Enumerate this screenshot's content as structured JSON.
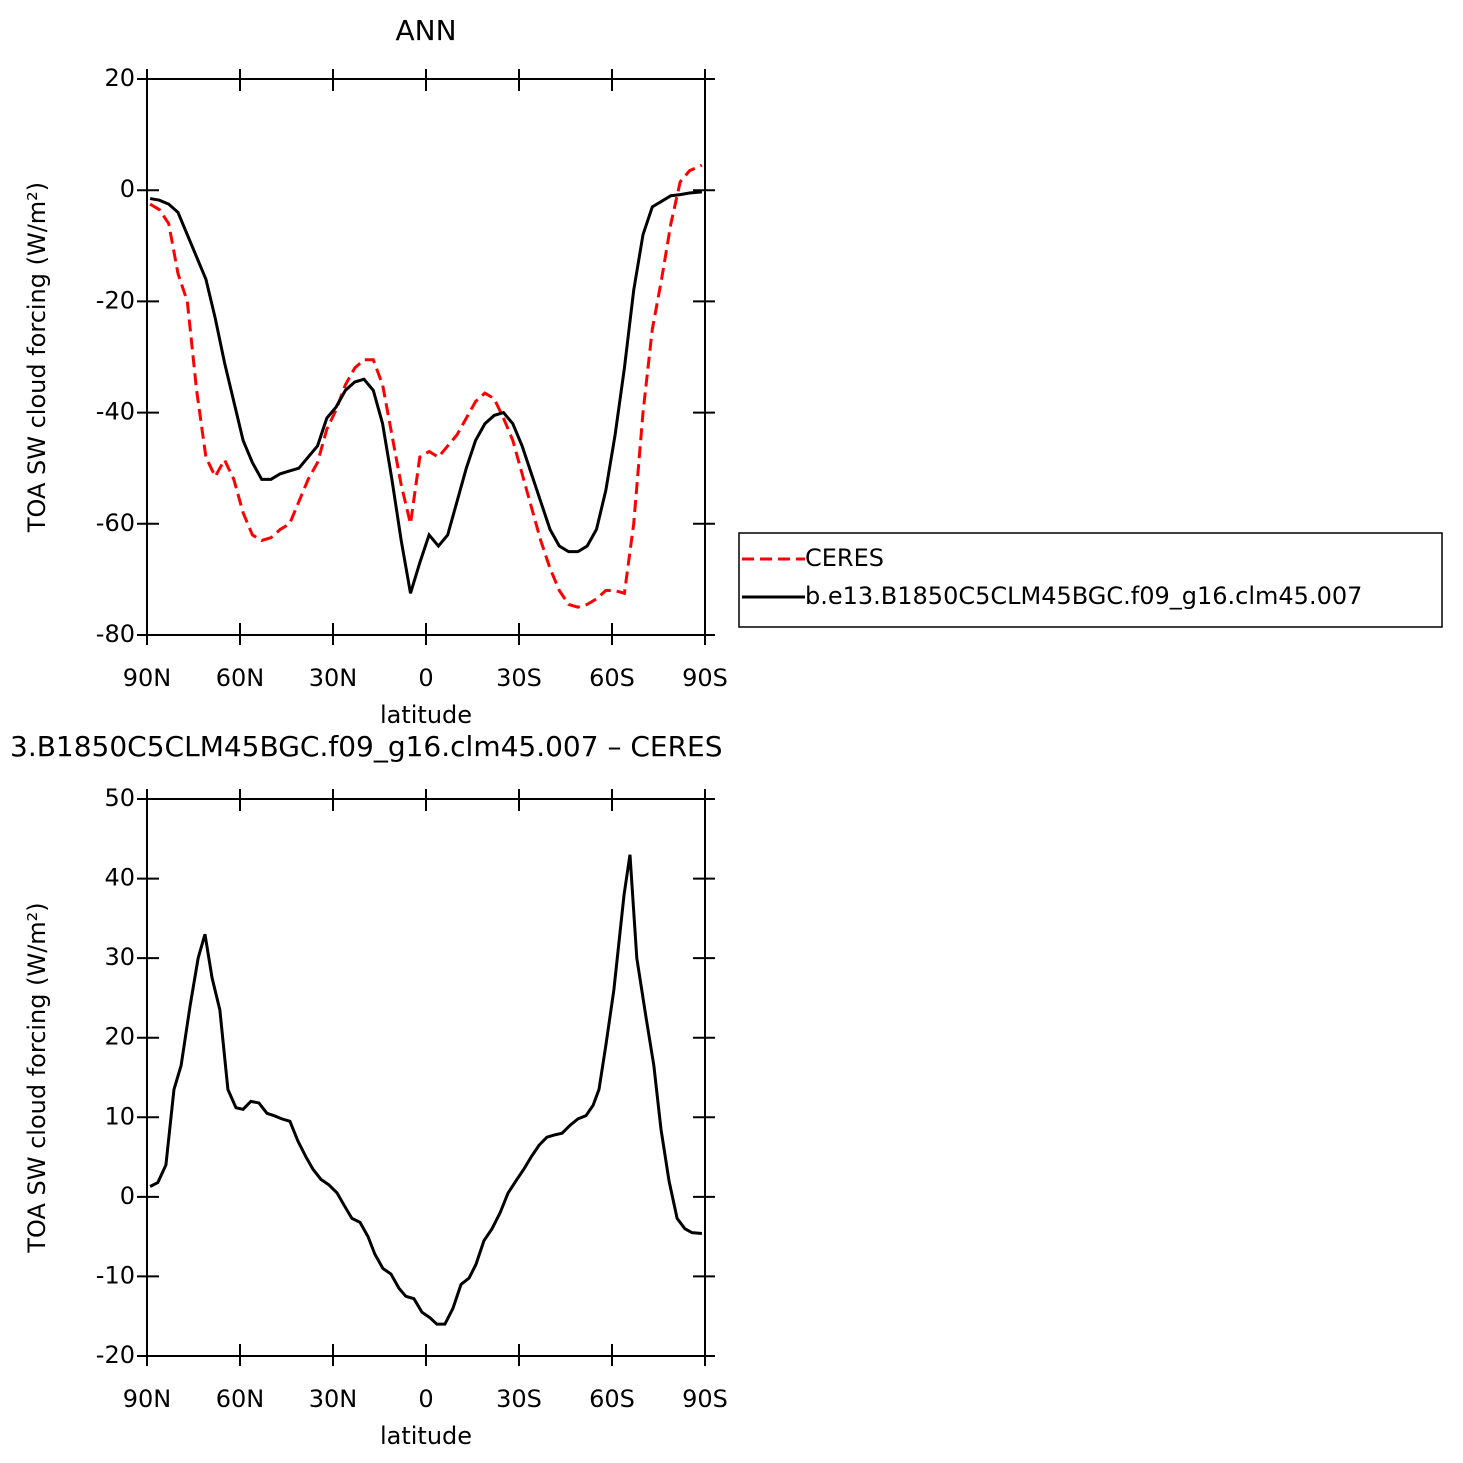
{
  "chart_data": [
    {
      "type": "line",
      "title": "ANN",
      "x_label": "latitude",
      "y_label": "TOA SW cloud forcing (W/m²)",
      "x": [
        89,
        86,
        83,
        80,
        77,
        74,
        71,
        68,
        65,
        62,
        59,
        56,
        53,
        50,
        47,
        44,
        41,
        38,
        35,
        32,
        29,
        26,
        23,
        20,
        17,
        14,
        11,
        8,
        5,
        2,
        -1,
        -4,
        -7,
        -10,
        -13,
        -16,
        -19,
        -22,
        -25,
        -28,
        -31,
        -34,
        -37,
        -40,
        -43,
        -46,
        -49,
        -52,
        -55,
        -58,
        -61,
        -64,
        -67,
        -70,
        -73,
        -76,
        -79,
        -82,
        -85,
        -89
      ],
      "series": [
        {
          "name": "CERES",
          "color": "#ff0000",
          "linestyle": "dashed",
          "values": [
            -2.5,
            -3.5,
            -6,
            -15,
            -20,
            -36,
            -48,
            -51.5,
            -48.5,
            -52,
            -58,
            -62,
            -63,
            -62.5,
            -61,
            -60,
            -56,
            -52,
            -49,
            -43,
            -39.5,
            -35,
            -32,
            -30.5,
            -30.5,
            -35,
            -44,
            -53,
            -60,
            -48,
            -47,
            -48,
            -46,
            -44,
            -41,
            -38,
            -36.5,
            -37.5,
            -41,
            -45,
            -51,
            -57,
            -63,
            -68,
            -72,
            -74.5,
            -75,
            -74.5,
            -73.5,
            -72,
            -72,
            -72.5,
            -60,
            -40,
            -25,
            -16,
            -6,
            1.5,
            3.5,
            4.5
          ]
        },
        {
          "name": "b.e13.B1850C5CLM45BGC.f09_g16.clm45.007",
          "color": "#000000",
          "linestyle": "solid",
          "values": [
            -1.5,
            -1.8,
            -2.5,
            -4,
            -8,
            -12,
            -16,
            -23,
            -31,
            -38,
            -45,
            -49,
            -52,
            -52,
            -51,
            -50.5,
            -50,
            -48,
            -46,
            -41,
            -39,
            -36,
            -34.5,
            -34,
            -36,
            -42,
            -52,
            -63,
            -72.5,
            -67,
            -62,
            -64,
            -62,
            -56,
            -50,
            -45,
            -42,
            -40.5,
            -40,
            -42,
            -46,
            -51,
            -56,
            -61,
            -64,
            -65,
            -65,
            -64,
            -61,
            -54,
            -44,
            -32,
            -18,
            -8,
            -3,
            -2,
            -1,
            -0.8,
            -0.5,
            -0.3
          ]
        }
      ],
      "xlim": [
        90,
        -90
      ],
      "xticks": [
        {
          "value": 90,
          "label": "90N"
        },
        {
          "value": 60,
          "label": "60N"
        },
        {
          "value": 30,
          "label": "30N"
        },
        0,
        {
          "value": -30,
          "label": "30S"
        },
        {
          "value": -60,
          "label": "60S"
        },
        {
          "value": -90,
          "label": "90S"
        }
      ],
      "ylim": [
        -80,
        20
      ],
      "yticks": [
        -80,
        -60,
        -40,
        -20,
        0,
        20
      ],
      "legend": "right"
    },
    {
      "type": "line",
      "title": "3.B1850C5CLM45BGC.f09_g16.clm45.007 – CERES",
      "x_label": "latitude",
      "y_label": "TOA SW cloud forcing (W/m²)",
      "x": [
        89,
        86.5,
        83.9,
        81.3,
        79,
        76.1,
        73.5,
        71.3,
        69,
        66.5,
        63.9,
        61.3,
        59,
        56.5,
        53.9,
        51.3,
        49,
        46.5,
        43.9,
        41.3,
        38.7,
        36.5,
        33.9,
        31.3,
        28.7,
        26.5,
        23.9,
        21.3,
        18.7,
        16.5,
        13.9,
        11.3,
        8.7,
        6.5,
        3.9,
        1.3,
        -1.3,
        -3.5,
        -6.1,
        -8.7,
        -11.3,
        -13.9,
        -16.1,
        -18.7,
        -21.3,
        -23.9,
        -26.5,
        -29,
        -31.6,
        -33.9,
        -36.5,
        -39,
        -41.6,
        -43.9,
        -46.5,
        -49,
        -51.6,
        -53.9,
        -55.8,
        -58,
        -60.6,
        -63.9,
        -65.8,
        -68,
        -71,
        -73.5,
        -75.8,
        -78.4,
        -81,
        -83.5,
        -85.8,
        -89
      ],
      "series": [
        {
          "color": "#000000",
          "linestyle": "solid",
          "values": [
            1.3,
            1.8,
            4,
            13.5,
            16.5,
            24,
            30,
            33,
            27.5,
            23.5,
            13.5,
            11.2,
            11,
            12,
            11.8,
            10.5,
            10.2,
            9.8,
            9.5,
            7,
            5,
            3.5,
            2.2,
            1.5,
            0.5,
            -1,
            -2.7,
            -3.2,
            -5,
            -7.2,
            -9,
            -9.7,
            -11.5,
            -12.5,
            -12.8,
            -14.5,
            -15.2,
            -16,
            -16,
            -14,
            -11,
            -10.2,
            -8.5,
            -5.5,
            -4,
            -2,
            0.5,
            2,
            3.5,
            5,
            6.5,
            7.5,
            7.8,
            8,
            9,
            9.8,
            10.2,
            11.5,
            13.5,
            19,
            26,
            38,
            43,
            30,
            22.5,
            16.5,
            8.5,
            2,
            -2.7,
            -4,
            -4.5,
            -4.6
          ]
        }
      ],
      "xlim": [
        90,
        -90
      ],
      "xticks": [
        {
          "value": 90,
          "label": "90N"
        },
        {
          "value": 60,
          "label": "60N"
        },
        {
          "value": 30,
          "label": "30N"
        },
        0,
        {
          "value": -30,
          "label": "30S"
        },
        {
          "value": -60,
          "label": "60S"
        },
        {
          "value": -90,
          "label": "90S"
        }
      ],
      "ylim": [
        -20,
        50
      ],
      "yticks": [
        -20,
        -10,
        0,
        10,
        20,
        30,
        40,
        50
      ]
    }
  ]
}
